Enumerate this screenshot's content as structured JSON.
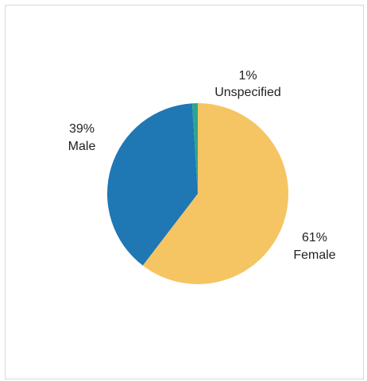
{
  "chart_data": {
    "type": "pie",
    "title": "",
    "slices": [
      {
        "label": "Female",
        "value": 61,
        "percent_label": "61%",
        "color": "#F5C563"
      },
      {
        "label": "Male",
        "value": 39,
        "percent_label": "39%",
        "color": "#1F77B4"
      },
      {
        "label": "Unspecified",
        "value": 1,
        "percent_label": "1%",
        "color": "#2CA58D"
      }
    ],
    "legend": "none",
    "data_labels": "outside"
  }
}
